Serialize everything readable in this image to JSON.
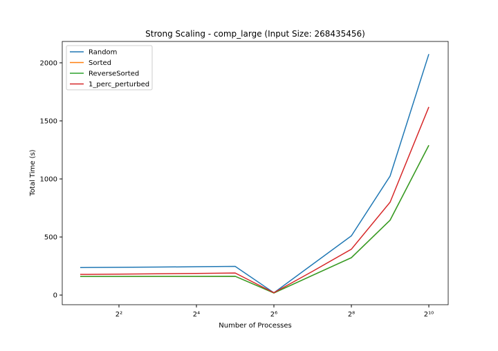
{
  "chart_data": {
    "type": "line",
    "title": "Strong Scaling - comp_large (Input Size: 268435456)",
    "xlabel": "Number of Processes",
    "ylabel": "Total Time (s)",
    "x": [
      2,
      4,
      8,
      16,
      32,
      64,
      128,
      256,
      512,
      1024
    ],
    "xscale": "log2",
    "xlim": [
      1.45,
      1448
    ],
    "ylim": [
      -83,
      2184
    ],
    "xticks": [
      {
        "value": 4,
        "label": "2²"
      },
      {
        "value": 16,
        "label": "2⁴"
      },
      {
        "value": 64,
        "label": "2⁶"
      },
      {
        "value": 256,
        "label": "2⁸"
      },
      {
        "value": 1024,
        "label": "2¹⁰"
      }
    ],
    "yticks": [
      0,
      500,
      1000,
      1500,
      2000
    ],
    "legend": "upper left",
    "series": [
      {
        "name": "Random",
        "color": "#1f77b4",
        "values": [
          237,
          239,
          241,
          244,
          247,
          20,
          265,
          510,
          1025,
          2075
        ]
      },
      {
        "name": "Sorted",
        "color": "#ff7f0e",
        "values": [
          160,
          160,
          161,
          161,
          162,
          18,
          170,
          322,
          645,
          1290
        ]
      },
      {
        "name": "ReverseSorted",
        "color": "#2ca02c",
        "values": [
          160,
          160,
          161,
          161,
          162,
          18,
          170,
          322,
          645,
          1290
        ]
      },
      {
        "name": "1_perc_perturbed",
        "color": "#d62728",
        "values": [
          178,
          180,
          183,
          186,
          190,
          20,
          205,
          395,
          800,
          1620
        ]
      }
    ]
  }
}
